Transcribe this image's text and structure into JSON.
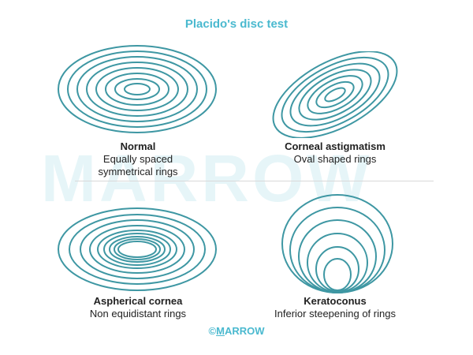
{
  "title": "Placido's disc test",
  "watermark": "MARROW",
  "colors": {
    "ring": "#3e97a3",
    "title": "#4ab9cf",
    "text": "#222222"
  },
  "panels": [
    {
      "id": "normal",
      "heading": "Normal",
      "lines": [
        "Equally spaced",
        "symmetrical rings"
      ]
    },
    {
      "id": "corneal-astigmatism",
      "heading": "Corneal astigmatism",
      "lines": [
        "Oval shaped rings"
      ]
    },
    {
      "id": "aspherical-cornea",
      "heading": "Aspherical cornea",
      "lines": [
        "Non equidistant rings"
      ]
    },
    {
      "id": "keratoconus",
      "heading": "Keratoconus",
      "lines": [
        "Inferior steepening of rings"
      ]
    }
  ],
  "footer": {
    "copyright": "©",
    "first": "M",
    "rest": "ARROW"
  }
}
